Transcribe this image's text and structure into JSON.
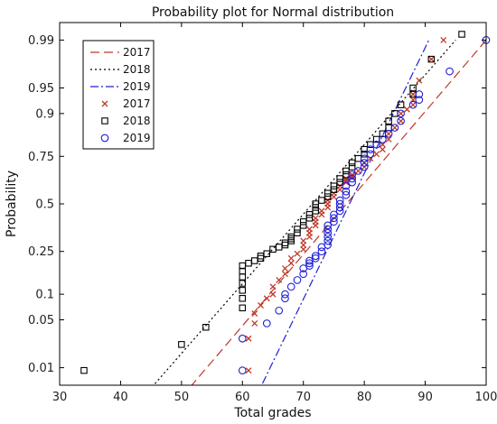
{
  "chart_data": {
    "type": "scatter",
    "title": "Probability plot for Normal distribution",
    "xlabel": "Total grades",
    "ylabel": "Probability",
    "xlim": [
      30,
      100
    ],
    "x_ticks": [
      30,
      40,
      50,
      60,
      70,
      80,
      90,
      100
    ],
    "y_ticks": [
      {
        "p": 0.01,
        "label": "0.01"
      },
      {
        "p": 0.05,
        "label": "0.05"
      },
      {
        "p": 0.1,
        "label": "0.1"
      },
      {
        "p": 0.25,
        "label": "0.25"
      },
      {
        "p": 0.5,
        "label": "0.5"
      },
      {
        "p": 0.75,
        "label": "0.75"
      },
      {
        "p": 0.9,
        "label": "0.9"
      },
      {
        "p": 0.95,
        "label": "0.95"
      },
      {
        "p": 0.99,
        "label": "0.99"
      }
    ],
    "y_scale": "normal-probability",
    "grid": false,
    "legend_position": "top-left",
    "legend": [
      {
        "label": "2017",
        "kind": "line",
        "style": "dashed",
        "color": "#c0392b"
      },
      {
        "label": "2018",
        "kind": "line",
        "style": "dotted",
        "color": "#000000"
      },
      {
        "label": "2019",
        "kind": "line",
        "style": "dashdot",
        "color": "#1f1fd6"
      },
      {
        "label": "2017",
        "kind": "marker",
        "marker": "x",
        "color": "#c0392b"
      },
      {
        "label": "2018",
        "kind": "marker",
        "marker": "square",
        "color": "#000000"
      },
      {
        "label": "2019",
        "kind": "marker",
        "marker": "circle",
        "color": "#1f1fd6"
      }
    ],
    "fit_lines": [
      {
        "label": "2017",
        "color": "#c0392b",
        "style": "dashed",
        "points": [
          [
            50,
            0.003
          ],
          [
            100,
            0.99
          ]
        ]
      },
      {
        "label": "2018",
        "color": "#000000",
        "style": "dotted",
        "points": [
          [
            43.7,
            0.003
          ],
          [
            95.0,
            0.99
          ]
        ]
      },
      {
        "label": "2019",
        "color": "#1f1fd6",
        "style": "dashdot",
        "points": [
          [
            62.2,
            0.003
          ],
          [
            90.6,
            0.99
          ]
        ]
      }
    ],
    "series": [
      {
        "label": "2017",
        "marker": "x",
        "color": "#c0392b",
        "points": [
          [
            61,
            0.009
          ],
          [
            61,
            0.028
          ],
          [
            62,
            0.045
          ],
          [
            62,
            0.06
          ],
          [
            63,
            0.075
          ],
          [
            64,
            0.09
          ],
          [
            65,
            0.1
          ],
          [
            65,
            0.12
          ],
          [
            66,
            0.14
          ],
          [
            67,
            0.16
          ],
          [
            67,
            0.18
          ],
          [
            68,
            0.2
          ],
          [
            68,
            0.22
          ],
          [
            69,
            0.24
          ],
          [
            70,
            0.26
          ],
          [
            70,
            0.28
          ],
          [
            70,
            0.3
          ],
          [
            71,
            0.32
          ],
          [
            71,
            0.34
          ],
          [
            71,
            0.36
          ],
          [
            72,
            0.38
          ],
          [
            72,
            0.4
          ],
          [
            72,
            0.42
          ],
          [
            73,
            0.44
          ],
          [
            73,
            0.46
          ],
          [
            74,
            0.48
          ],
          [
            74,
            0.5
          ],
          [
            74,
            0.52
          ],
          [
            75,
            0.54
          ],
          [
            75,
            0.56
          ],
          [
            76,
            0.58
          ],
          [
            76,
            0.6
          ],
          [
            77,
            0.62
          ],
          [
            77,
            0.63
          ],
          [
            77,
            0.64
          ],
          [
            78,
            0.65
          ],
          [
            78,
            0.66
          ],
          [
            79,
            0.68
          ],
          [
            80,
            0.7
          ],
          [
            80,
            0.72
          ],
          [
            81,
            0.74
          ],
          [
            82,
            0.76
          ],
          [
            83,
            0.78
          ],
          [
            83,
            0.8
          ],
          [
            84,
            0.82
          ],
          [
            84,
            0.84
          ],
          [
            85,
            0.86
          ],
          [
            86,
            0.88
          ],
          [
            86,
            0.9
          ],
          [
            87,
            0.91
          ],
          [
            88,
            0.92
          ],
          [
            88,
            0.93
          ],
          [
            88,
            0.94
          ],
          [
            89,
            0.96
          ],
          [
            91,
            0.98
          ],
          [
            93,
            0.99
          ]
        ]
      },
      {
        "label": "2018",
        "marker": "square",
        "color": "#000000",
        "points": [
          [
            34,
            0.009
          ],
          [
            50,
            0.023
          ],
          [
            54,
            0.04
          ],
          [
            60,
            0.07
          ],
          [
            60,
            0.09
          ],
          [
            60,
            0.11
          ],
          [
            60,
            0.13
          ],
          [
            60,
            0.15
          ],
          [
            60,
            0.17
          ],
          [
            60,
            0.19
          ],
          [
            61,
            0.2
          ],
          [
            62,
            0.21
          ],
          [
            63,
            0.22
          ],
          [
            63,
            0.23
          ],
          [
            64,
            0.24
          ],
          [
            65,
            0.26
          ],
          [
            66,
            0.27
          ],
          [
            67,
            0.28
          ],
          [
            67,
            0.29
          ],
          [
            68,
            0.3
          ],
          [
            68,
            0.31
          ],
          [
            68,
            0.32
          ],
          [
            69,
            0.34
          ],
          [
            69,
            0.36
          ],
          [
            70,
            0.38
          ],
          [
            70,
            0.4
          ],
          [
            71,
            0.42
          ],
          [
            71,
            0.44
          ],
          [
            72,
            0.46
          ],
          [
            72,
            0.48
          ],
          [
            72,
            0.5
          ],
          [
            73,
            0.52
          ],
          [
            74,
            0.54
          ],
          [
            74,
            0.56
          ],
          [
            75,
            0.58
          ],
          [
            75,
            0.6
          ],
          [
            76,
            0.62
          ],
          [
            76,
            0.64
          ],
          [
            77,
            0.66
          ],
          [
            77,
            0.68
          ],
          [
            78,
            0.7
          ],
          [
            78,
            0.72
          ],
          [
            79,
            0.74
          ],
          [
            80,
            0.76
          ],
          [
            80,
            0.78
          ],
          [
            81,
            0.8
          ],
          [
            82,
            0.82
          ],
          [
            83,
            0.84
          ],
          [
            84,
            0.86
          ],
          [
            84,
            0.88
          ],
          [
            85,
            0.9
          ],
          [
            86,
            0.92
          ],
          [
            88,
            0.94
          ],
          [
            88,
            0.95
          ],
          [
            91,
            0.98
          ],
          [
            96,
            0.992
          ]
        ]
      },
      {
        "label": "2019",
        "marker": "circle",
        "color": "#1f1fd6",
        "points": [
          [
            60,
            0.009
          ],
          [
            60,
            0.028
          ],
          [
            64,
            0.045
          ],
          [
            66,
            0.065
          ],
          [
            67,
            0.09
          ],
          [
            67,
            0.1
          ],
          [
            68,
            0.12
          ],
          [
            69,
            0.14
          ],
          [
            70,
            0.16
          ],
          [
            70,
            0.18
          ],
          [
            71,
            0.19
          ],
          [
            71,
            0.2
          ],
          [
            71,
            0.21
          ],
          [
            72,
            0.22
          ],
          [
            72,
            0.23
          ],
          [
            73,
            0.25
          ],
          [
            73,
            0.27
          ],
          [
            74,
            0.28
          ],
          [
            74,
            0.3
          ],
          [
            74,
            0.32
          ],
          [
            74,
            0.34
          ],
          [
            74,
            0.36
          ],
          [
            74,
            0.38
          ],
          [
            75,
            0.4
          ],
          [
            75,
            0.42
          ],
          [
            75,
            0.44
          ],
          [
            76,
            0.46
          ],
          [
            76,
            0.48
          ],
          [
            76,
            0.5
          ],
          [
            76,
            0.52
          ],
          [
            77,
            0.55
          ],
          [
            77,
            0.57
          ],
          [
            77,
            0.6
          ],
          [
            78,
            0.62
          ],
          [
            78,
            0.64
          ],
          [
            78,
            0.66
          ],
          [
            79,
            0.68
          ],
          [
            80,
            0.7
          ],
          [
            80,
            0.72
          ],
          [
            80,
            0.74
          ],
          [
            81,
            0.76
          ],
          [
            81,
            0.78
          ],
          [
            82,
            0.8
          ],
          [
            83,
            0.82
          ],
          [
            84,
            0.84
          ],
          [
            85,
            0.86
          ],
          [
            86,
            0.88
          ],
          [
            86,
            0.9
          ],
          [
            88,
            0.92
          ],
          [
            89,
            0.93
          ],
          [
            89,
            0.94
          ],
          [
            94,
            0.97
          ],
          [
            100,
            0.99
          ]
        ]
      }
    ]
  }
}
